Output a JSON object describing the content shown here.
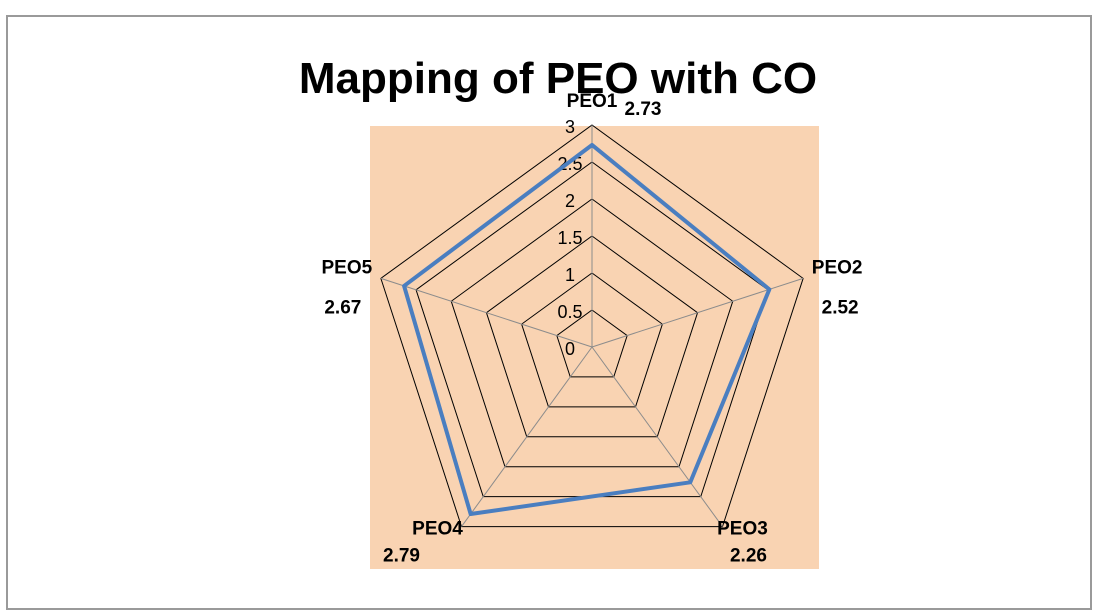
{
  "chart_data": {
    "type": "radar",
    "title": "Mapping of PEO with CO",
    "categories": [
      "PEO1",
      "PEO2",
      "PEO3",
      "PEO4",
      "PEO5"
    ],
    "series": [
      {
        "values": [
          2.73,
          2.52,
          2.26,
          2.79,
          2.67
        ]
      }
    ],
    "value_labels": [
      "2.73",
      "2.52",
      "2.26",
      "2.79",
      "2.67"
    ],
    "radial_ticks": [
      "0",
      "0.5",
      "1",
      "1.5",
      "2",
      "2.5",
      "3"
    ],
    "rlim": [
      0,
      3
    ],
    "legend": "none",
    "colors": {
      "series": "#4a7ec0",
      "plot_background": "#f9d3b2",
      "outer_grid": "#000000",
      "inner_grid": "#000000",
      "spokes": "#8c8c8c"
    }
  }
}
